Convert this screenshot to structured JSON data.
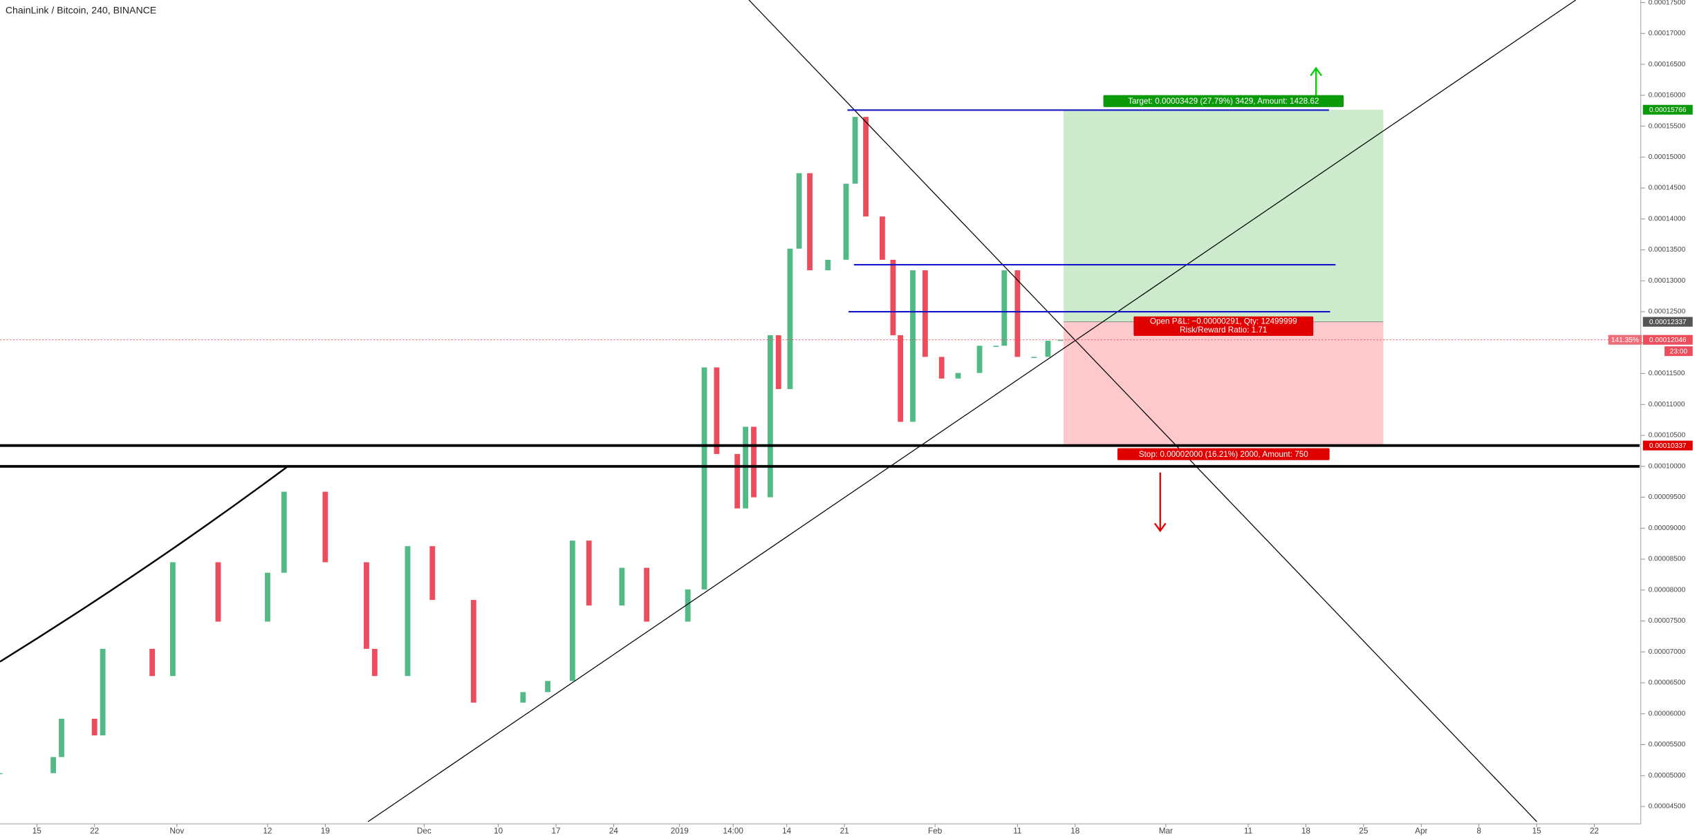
{
  "chart_data": {
    "type": "candlestick",
    "title": "ChainLink / Bitcoin, 240, BINANCE",
    "up_color": "#53b987",
    "down_color": "#eb4d5c",
    "xlim": [
      -4.47,
      194.5
    ],
    "ylim": [
      4.22e-05,
      0.0001754
    ],
    "x": [
      -4.5,
      2,
      3,
      7,
      8,
      14,
      16.5,
      22,
      28,
      30,
      35,
      40,
      41,
      45,
      48,
      53,
      59,
      62,
      65,
      67,
      71,
      74,
      79,
      81,
      82.5,
      85,
      86,
      87,
      89,
      90,
      91.4,
      92.5,
      93.8,
      96,
      98.2,
      99.3,
      100.6,
      102.6,
      103.9,
      104.8,
      106.3,
      107.8,
      109.8,
      111.8,
      114.4,
      116.4,
      117.4,
      119,
      121,
      122.7,
      124.2
    ],
    "close": [
      5.04e-05,
      5.3e-05,
      5.92e-05,
      5.65e-05,
      7.05e-05,
      6.61e-05,
      8.45e-05,
      7.49e-05,
      8.28e-05,
      9.59e-05,
      8.45e-05,
      7.05e-05,
      6.61e-05,
      8.71e-05,
      7.84e-05,
      6.18e-05,
      6.35e-05,
      6.53e-05,
      8.8e-05,
      7.75e-05,
      8.36e-05,
      7.49e-05,
      8.01e-05,
      0.000116,
      0.000102,
      9.32e-05,
      0.0001064,
      9.5e-05,
      0.0001212,
      0.0001125,
      0.0001352,
      0.0001474,
      0.0001317,
      0.0001334,
      0.0001457,
      0.0001565,
      0.0001404,
      0.0001334,
      0.0001212,
      0.0001072,
      0.0001317,
      0.0001177,
      0.0001142,
      0.0001151,
      0.0001195,
      0.0001195,
      0.0001317,
      0.0001177,
      0.0001177,
      0.0001203,
      0.00012046
    ],
    "xticks": [
      {
        "value": 0,
        "label": "15"
      },
      {
        "value": 7,
        "label": "22"
      },
      {
        "value": 17,
        "label": "Nov"
      },
      {
        "value": 28,
        "label": "12"
      },
      {
        "value": 35,
        "label": "19"
      },
      {
        "value": 47,
        "label": "Dec"
      },
      {
        "value": 56,
        "label": "10"
      },
      {
        "value": 63,
        "label": "17"
      },
      {
        "value": 70,
        "label": "24"
      },
      {
        "value": 78,
        "label": "2019"
      },
      {
        "value": 84.5,
        "label": "14:00"
      },
      {
        "value": 91,
        "label": "14"
      },
      {
        "value": 98,
        "label": "21"
      },
      {
        "value": 109,
        "label": "Feb"
      },
      {
        "value": 119,
        "label": "11"
      },
      {
        "value": 126,
        "label": "18"
      },
      {
        "value": 137,
        "label": "Mar"
      },
      {
        "value": 147,
        "label": "11"
      },
      {
        "value": 154,
        "label": "18"
      },
      {
        "value": 161,
        "label": "25"
      },
      {
        "value": 168,
        "label": "Apr"
      },
      {
        "value": 175,
        "label": "8"
      },
      {
        "value": 182,
        "label": "15"
      },
      {
        "value": 189,
        "label": "22"
      }
    ],
    "yticks": [
      {
        "value": 4.5e-05,
        "label": "0.00004500"
      },
      {
        "value": 5e-05,
        "label": "0.00005000"
      },
      {
        "value": 5.5e-05,
        "label": "0.00005500"
      },
      {
        "value": 6e-05,
        "label": "0.00006000"
      },
      {
        "value": 6.5e-05,
        "label": "0.00006500"
      },
      {
        "value": 7e-05,
        "label": "0.00007000"
      },
      {
        "value": 7.5e-05,
        "label": "0.00007500"
      },
      {
        "value": 8e-05,
        "label": "0.00008000"
      },
      {
        "value": 8.5e-05,
        "label": "0.00008500"
      },
      {
        "value": 9e-05,
        "label": "0.00009000"
      },
      {
        "value": 9.5e-05,
        "label": "0.00009500"
      },
      {
        "value": 0.0001,
        "label": "0.00010000"
      },
      {
        "value": 0.000105,
        "label": "0.00010500"
      },
      {
        "value": 0.00011,
        "label": "0.00011000"
      },
      {
        "value": 0.000115,
        "label": "0.00011500"
      },
      {
        "value": 0.00012,
        "label": "0.00012000"
      },
      {
        "value": 0.000125,
        "label": "0.00012500"
      },
      {
        "value": 0.00013,
        "label": "0.00013000"
      },
      {
        "value": 0.000135,
        "label": "0.00013500"
      },
      {
        "value": 0.00014,
        "label": "0.00014000"
      },
      {
        "value": 0.000145,
        "label": "0.00014500"
      },
      {
        "value": 0.00015,
        "label": "0.00015000"
      },
      {
        "value": 0.000155,
        "label": "0.00015500"
      },
      {
        "value": 0.00016,
        "label": "0.00016000"
      },
      {
        "value": 0.000165,
        "label": "0.00016500"
      },
      {
        "value": 0.00017,
        "label": "0.00017000"
      },
      {
        "value": 0.000175,
        "label": "0.00017500"
      }
    ],
    "support_levels": [
      0.00010337,
      0.0001
    ],
    "resistance_levels": [
      0.0001576,
      0.0001326,
      0.000125
    ],
    "position": {
      "start": 124.6,
      "end": 163.4,
      "target_price": 0.00015766,
      "entry_price": 0.00012337,
      "stop_price": 0.00010337,
      "target_label": "Target: 0.00003429 (27.79%) 3429, Amount: 1428.62",
      "pnl_label": "Open P&L: −0.00000291, Qty: 12499999",
      "ratio_label": "Risk/Reward Ratio: 1.71",
      "stop_label": "Stop: 0.00002000 (16.21%) 2000, Amount: 750"
    },
    "last_price": 0.00012046,
    "last_change": "141.35%",
    "countdown": "23:00"
  }
}
